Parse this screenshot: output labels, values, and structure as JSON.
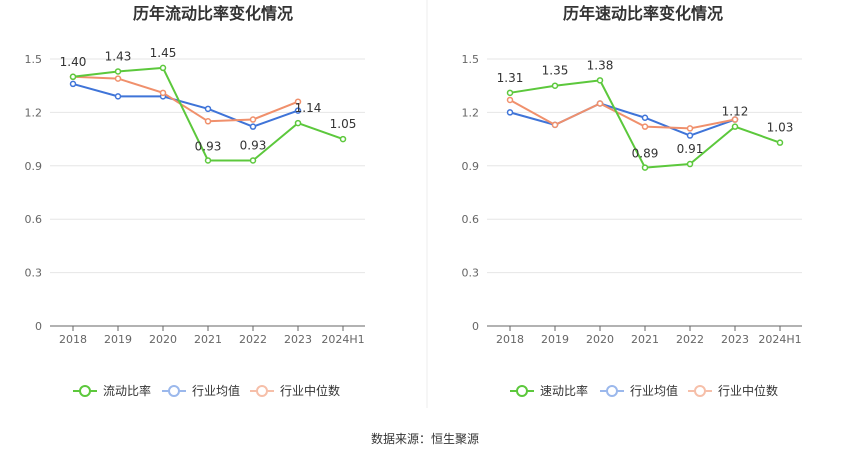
{
  "source_note": "数据来源：恒生聚源",
  "colors": {
    "main": "#5cc83c",
    "avg": "#3f74d8",
    "median": "#f0906c"
  },
  "chart_data": [
    {
      "type": "line",
      "title": "历年流动比率变化情况",
      "categories": [
        "2018",
        "2019",
        "2020",
        "2021",
        "2022",
        "2023",
        "2024H1"
      ],
      "y_ticks": [
        "0",
        "0.3",
        "0.6",
        "0.9",
        "1.2",
        "1.5"
      ],
      "ylim": [
        0,
        1.5
      ],
      "grid": true,
      "legend_position": "bottom",
      "series": [
        {
          "name": "流动比率",
          "role": "main",
          "values": [
            1.4,
            1.43,
            1.45,
            0.93,
            0.93,
            1.14,
            1.05
          ],
          "labels": [
            "1.40",
            "1.43",
            "1.45",
            "0.93",
            "0.93",
            "1.14",
            "1.05"
          ]
        },
        {
          "name": "行业均值",
          "role": "avg",
          "values": [
            1.36,
            1.29,
            1.29,
            1.22,
            1.12,
            1.21,
            null
          ]
        },
        {
          "name": "行业中位数",
          "role": "median",
          "values": [
            1.4,
            1.39,
            1.31,
            1.15,
            1.16,
            1.26,
            null
          ]
        }
      ]
    },
    {
      "type": "line",
      "title": "历年速动比率变化情况",
      "categories": [
        "2018",
        "2019",
        "2020",
        "2021",
        "2022",
        "2023",
        "2024H1"
      ],
      "y_ticks": [
        "0",
        "0.3",
        "0.6",
        "0.9",
        "1.2",
        "1.5"
      ],
      "ylim": [
        0,
        1.5
      ],
      "grid": true,
      "legend_position": "bottom",
      "series": [
        {
          "name": "速动比率",
          "role": "main",
          "values": [
            1.31,
            1.35,
            1.38,
            0.89,
            0.91,
            1.12,
            1.03
          ],
          "labels": [
            "1.31",
            "1.35",
            "1.38",
            "0.89",
            "0.91",
            "1.12",
            "1.03"
          ]
        },
        {
          "name": "行业均值",
          "role": "avg",
          "values": [
            1.2,
            1.13,
            1.25,
            1.17,
            1.07,
            1.16,
            null
          ]
        },
        {
          "name": "行业中位数",
          "role": "median",
          "values": [
            1.27,
            1.13,
            1.25,
            1.12,
            1.11,
            1.16,
            null
          ]
        }
      ]
    }
  ]
}
